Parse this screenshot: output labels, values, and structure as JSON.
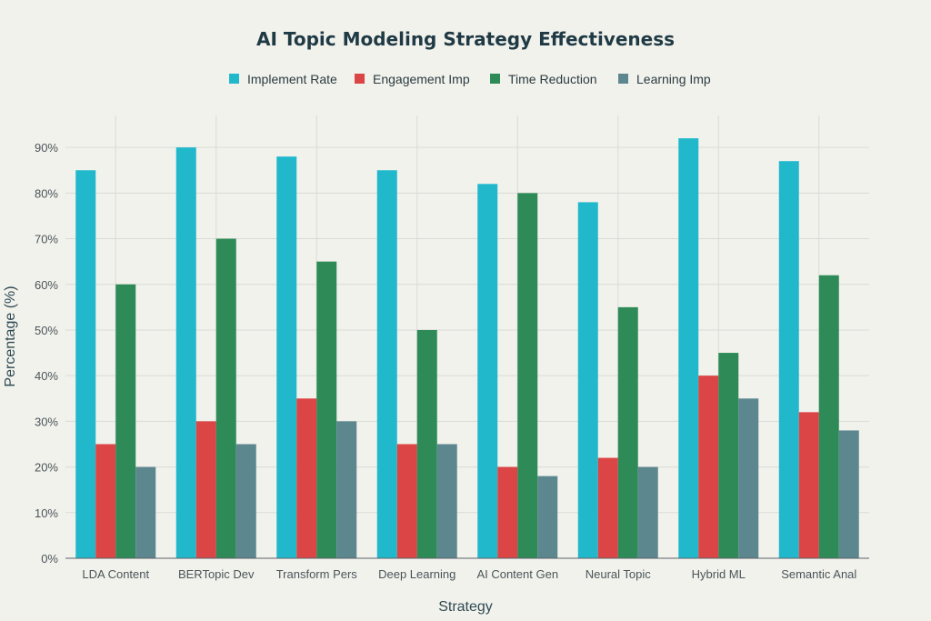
{
  "chart_data": {
    "type": "bar",
    "title": "AI Topic Modeling Strategy Effectiveness",
    "xlabel": "Strategy",
    "ylabel": "Percentage (%)",
    "ylim": [
      0,
      97
    ],
    "yticks": [
      0,
      10,
      20,
      30,
      40,
      50,
      60,
      70,
      80,
      90
    ],
    "ytick_labels": [
      "0%",
      "10%",
      "20%",
      "30%",
      "40%",
      "50%",
      "60%",
      "70%",
      "80%",
      "90%"
    ],
    "grid": true,
    "legend_position": "top-center",
    "categories": [
      "LDA Content",
      "BERTopic Dev",
      "Transform Pers",
      "Deep Learning",
      "AI Content Gen",
      "Neural Topic",
      "Hybrid ML",
      "Semantic Anal"
    ],
    "series": [
      {
        "name": "Implement Rate",
        "color": "#21b8cc",
        "values": [
          85,
          90,
          88,
          85,
          82,
          78,
          92,
          87
        ]
      },
      {
        "name": "Engagement Imp",
        "color": "#db4545",
        "values": [
          25,
          30,
          35,
          25,
          20,
          22,
          40,
          32
        ]
      },
      {
        "name": "Time Reduction",
        "color": "#2e8b57",
        "values": [
          60,
          70,
          65,
          50,
          80,
          55,
          45,
          62
        ]
      },
      {
        "name": "Learning Imp",
        "color": "#5d878f",
        "values": [
          20,
          25,
          30,
          25,
          18,
          20,
          35,
          28
        ]
      }
    ]
  }
}
